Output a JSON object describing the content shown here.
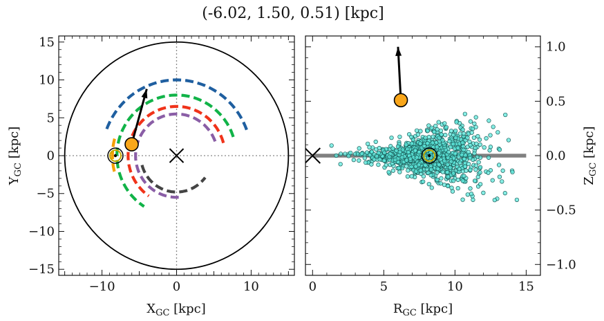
{
  "title": "(-6.02, 1.50, 0.51) [kpc]",
  "colors": {
    "arm_blue": "#1f5fa0",
    "arm_green": "#11b348",
    "arm_red": "#f0331a",
    "arm_purple": "#8a5ea6",
    "arm_gray": "#444444",
    "arm_orange": "#f5a000",
    "marker_orange": "#f9a61a",
    "star_cyan": "#5ee8dc",
    "star_edge": "#1a5c58",
    "plane": "#808080",
    "sun_ring": "#c8a800"
  },
  "chart_data": [
    {
      "type": "line",
      "name": "galactic-plane-xy",
      "xlabel": "X_GC [kpc]",
      "ylabel": "Y_GC [kpc]",
      "xlim": [
        -15.8,
        15.8
      ],
      "ylim": [
        -15.8,
        15.8
      ],
      "xticks": [
        -10,
        0,
        10
      ],
      "yticks": [
        15,
        10,
        5,
        0,
        -5,
        -10,
        -15
      ],
      "xtick_labels": [
        "−10",
        "0",
        "10"
      ],
      "ytick_labels": [
        "15",
        "10",
        "5",
        "0",
        "−5",
        "−10",
        "−15"
      ],
      "boundary_circle_radius": 15,
      "galactic_center": [
        0,
        0
      ],
      "sun": [
        -8.2,
        0
      ],
      "object": [
        -6.02,
        1.5
      ],
      "velocity_arrow_tip": [
        -4.0,
        8.8
      ],
      "arms": [
        {
          "color": "arm_blue",
          "radius": 10.0,
          "start_deg": 20,
          "end_deg": 162
        },
        {
          "color": "arm_green",
          "radius": 8.0,
          "start_deg": 18,
          "end_deg": 237
        },
        {
          "color": "arm_red",
          "radius": 6.5,
          "start_deg": 15,
          "end_deg": 235
        },
        {
          "color": "arm_purple",
          "radius": 5.5,
          "start_deg": 20,
          "end_deg": 273
        },
        {
          "color": "arm_gray",
          "radius": 4.8,
          "start_deg": 195,
          "end_deg": 323
        },
        {
          "color": "arm_orange",
          "radius": 8.6,
          "start_deg": 165,
          "end_deg": 195
        }
      ]
    },
    {
      "type": "scatter",
      "name": "r-z-plane",
      "xlabel": "R_GC [kpc]",
      "ylabel": "Z_GC [kpc]",
      "xlim": [
        -0.5,
        16
      ],
      "ylim": [
        -1.1,
        1.1
      ],
      "xticks": [
        0,
        5,
        10,
        15
      ],
      "yticks": [
        1.0,
        0.5,
        0.0,
        -0.5,
        -1.0
      ],
      "xtick_labels": [
        "0",
        "5",
        "10",
        "15"
      ],
      "ytick_labels": [
        "1.0",
        "0.5",
        "0.0",
        "−0.5",
        "−1.0"
      ],
      "galactic_center": [
        0,
        0
      ],
      "sun": [
        8.2,
        0
      ],
      "object": [
        6.2,
        0.51
      ],
      "velocity_arrow_tip": [
        6.0,
        1.0
      ],
      "plane_line": [
        0,
        15
      ],
      "star_cloud": {
        "center_r": 8.0,
        "spread_r": 2.2,
        "center_z": 0.0,
        "spread_z": 0.08,
        "count": 1100
      }
    }
  ]
}
